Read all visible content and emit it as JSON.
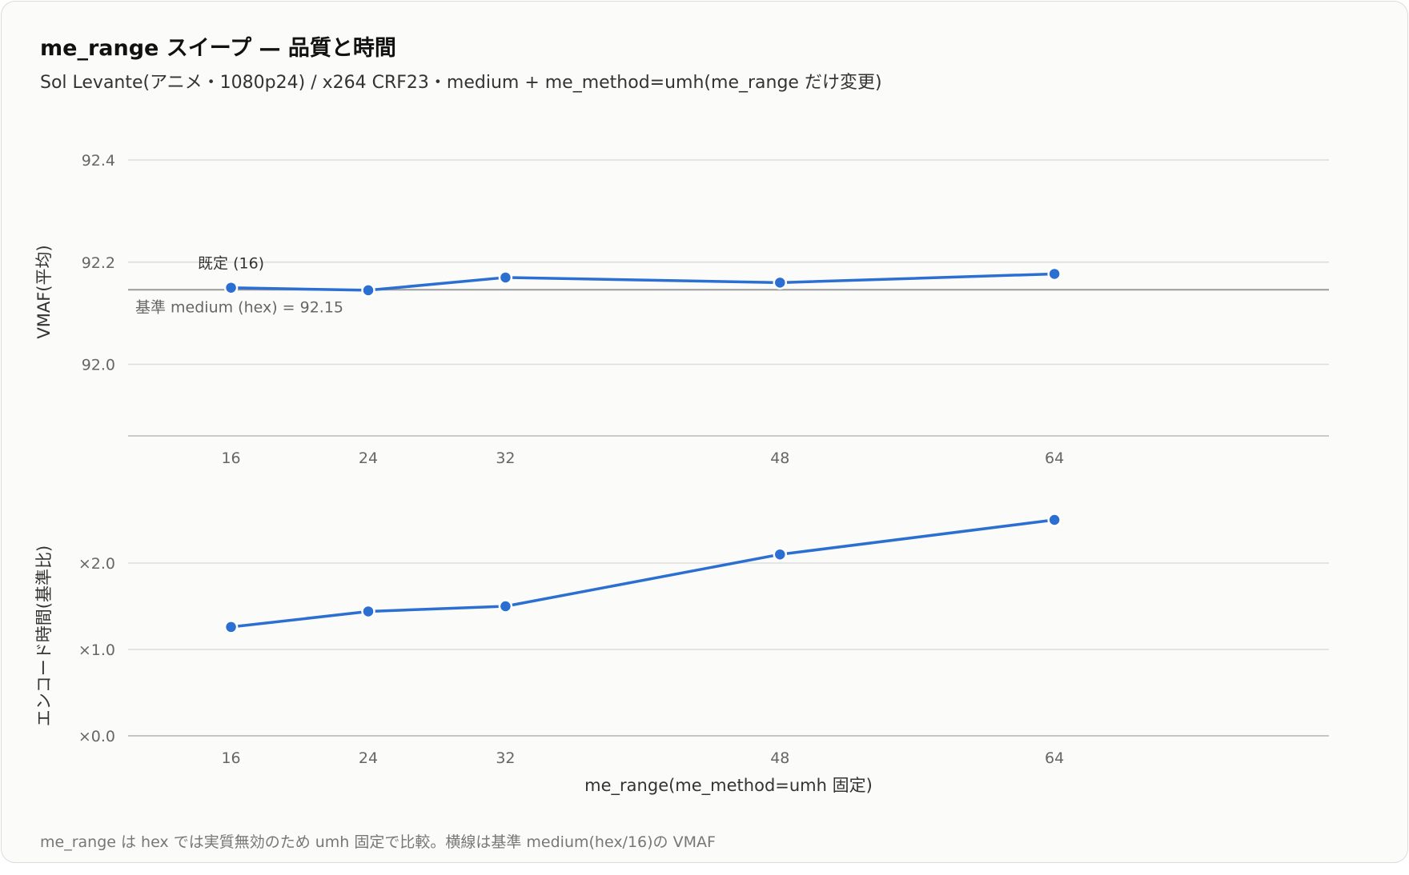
{
  "title": "me_range スイープ — 品質と時間",
  "subtitle": "Sol Levante(アニメ・1080p24) / x264 CRF23・medium + me_method=umh(me_range だけ変更)",
  "footnote": "me_range は hex では実質無効のため umh 固定で比較。横線は基準 medium(hex/16)の VMAF",
  "colors": {
    "line": "#2a6fd1",
    "grid": "#dcdcdc",
    "baseline": "#9a9a9a"
  },
  "chart_data": [
    {
      "type": "line",
      "x": [
        16,
        24,
        32,
        48,
        64
      ],
      "xtick_labels": [
        "16",
        "24",
        "32",
        "48",
        "64"
      ],
      "xlim": [
        10,
        80
      ],
      "series": [
        {
          "values": [
            92.15,
            92.145,
            92.17,
            92.16,
            92.177
          ]
        }
      ],
      "ylabel": "VMAF(平均)",
      "yticks": [
        92.0,
        92.2,
        92.4
      ],
      "ytick_labels": [
        "92.0",
        "92.2",
        "92.4"
      ],
      "ylim": [
        91.86,
        92.4
      ],
      "reference_line": {
        "value": 92.146,
        "label": "基準 medium (hex) = 92.15"
      },
      "annotation": {
        "x": 16,
        "text": "既定 (16)"
      },
      "grid": true
    },
    {
      "type": "line",
      "x": [
        16,
        24,
        32,
        48,
        64
      ],
      "xtick_labels": [
        "16",
        "24",
        "32",
        "48",
        "64"
      ],
      "xlim": [
        10,
        80
      ],
      "series": [
        {
          "values": [
            1.26,
            1.44,
            1.5,
            2.1,
            2.5
          ]
        }
      ],
      "xlabel": "me_range(me_method=umh 固定)",
      "ylabel": "エンコード時間(基準比)",
      "yticks": [
        0,
        1,
        2
      ],
      "ytick_labels": [
        "×0.0",
        "×1.0",
        "×2.0"
      ],
      "ylim": [
        0,
        2.5
      ],
      "grid": true
    }
  ]
}
